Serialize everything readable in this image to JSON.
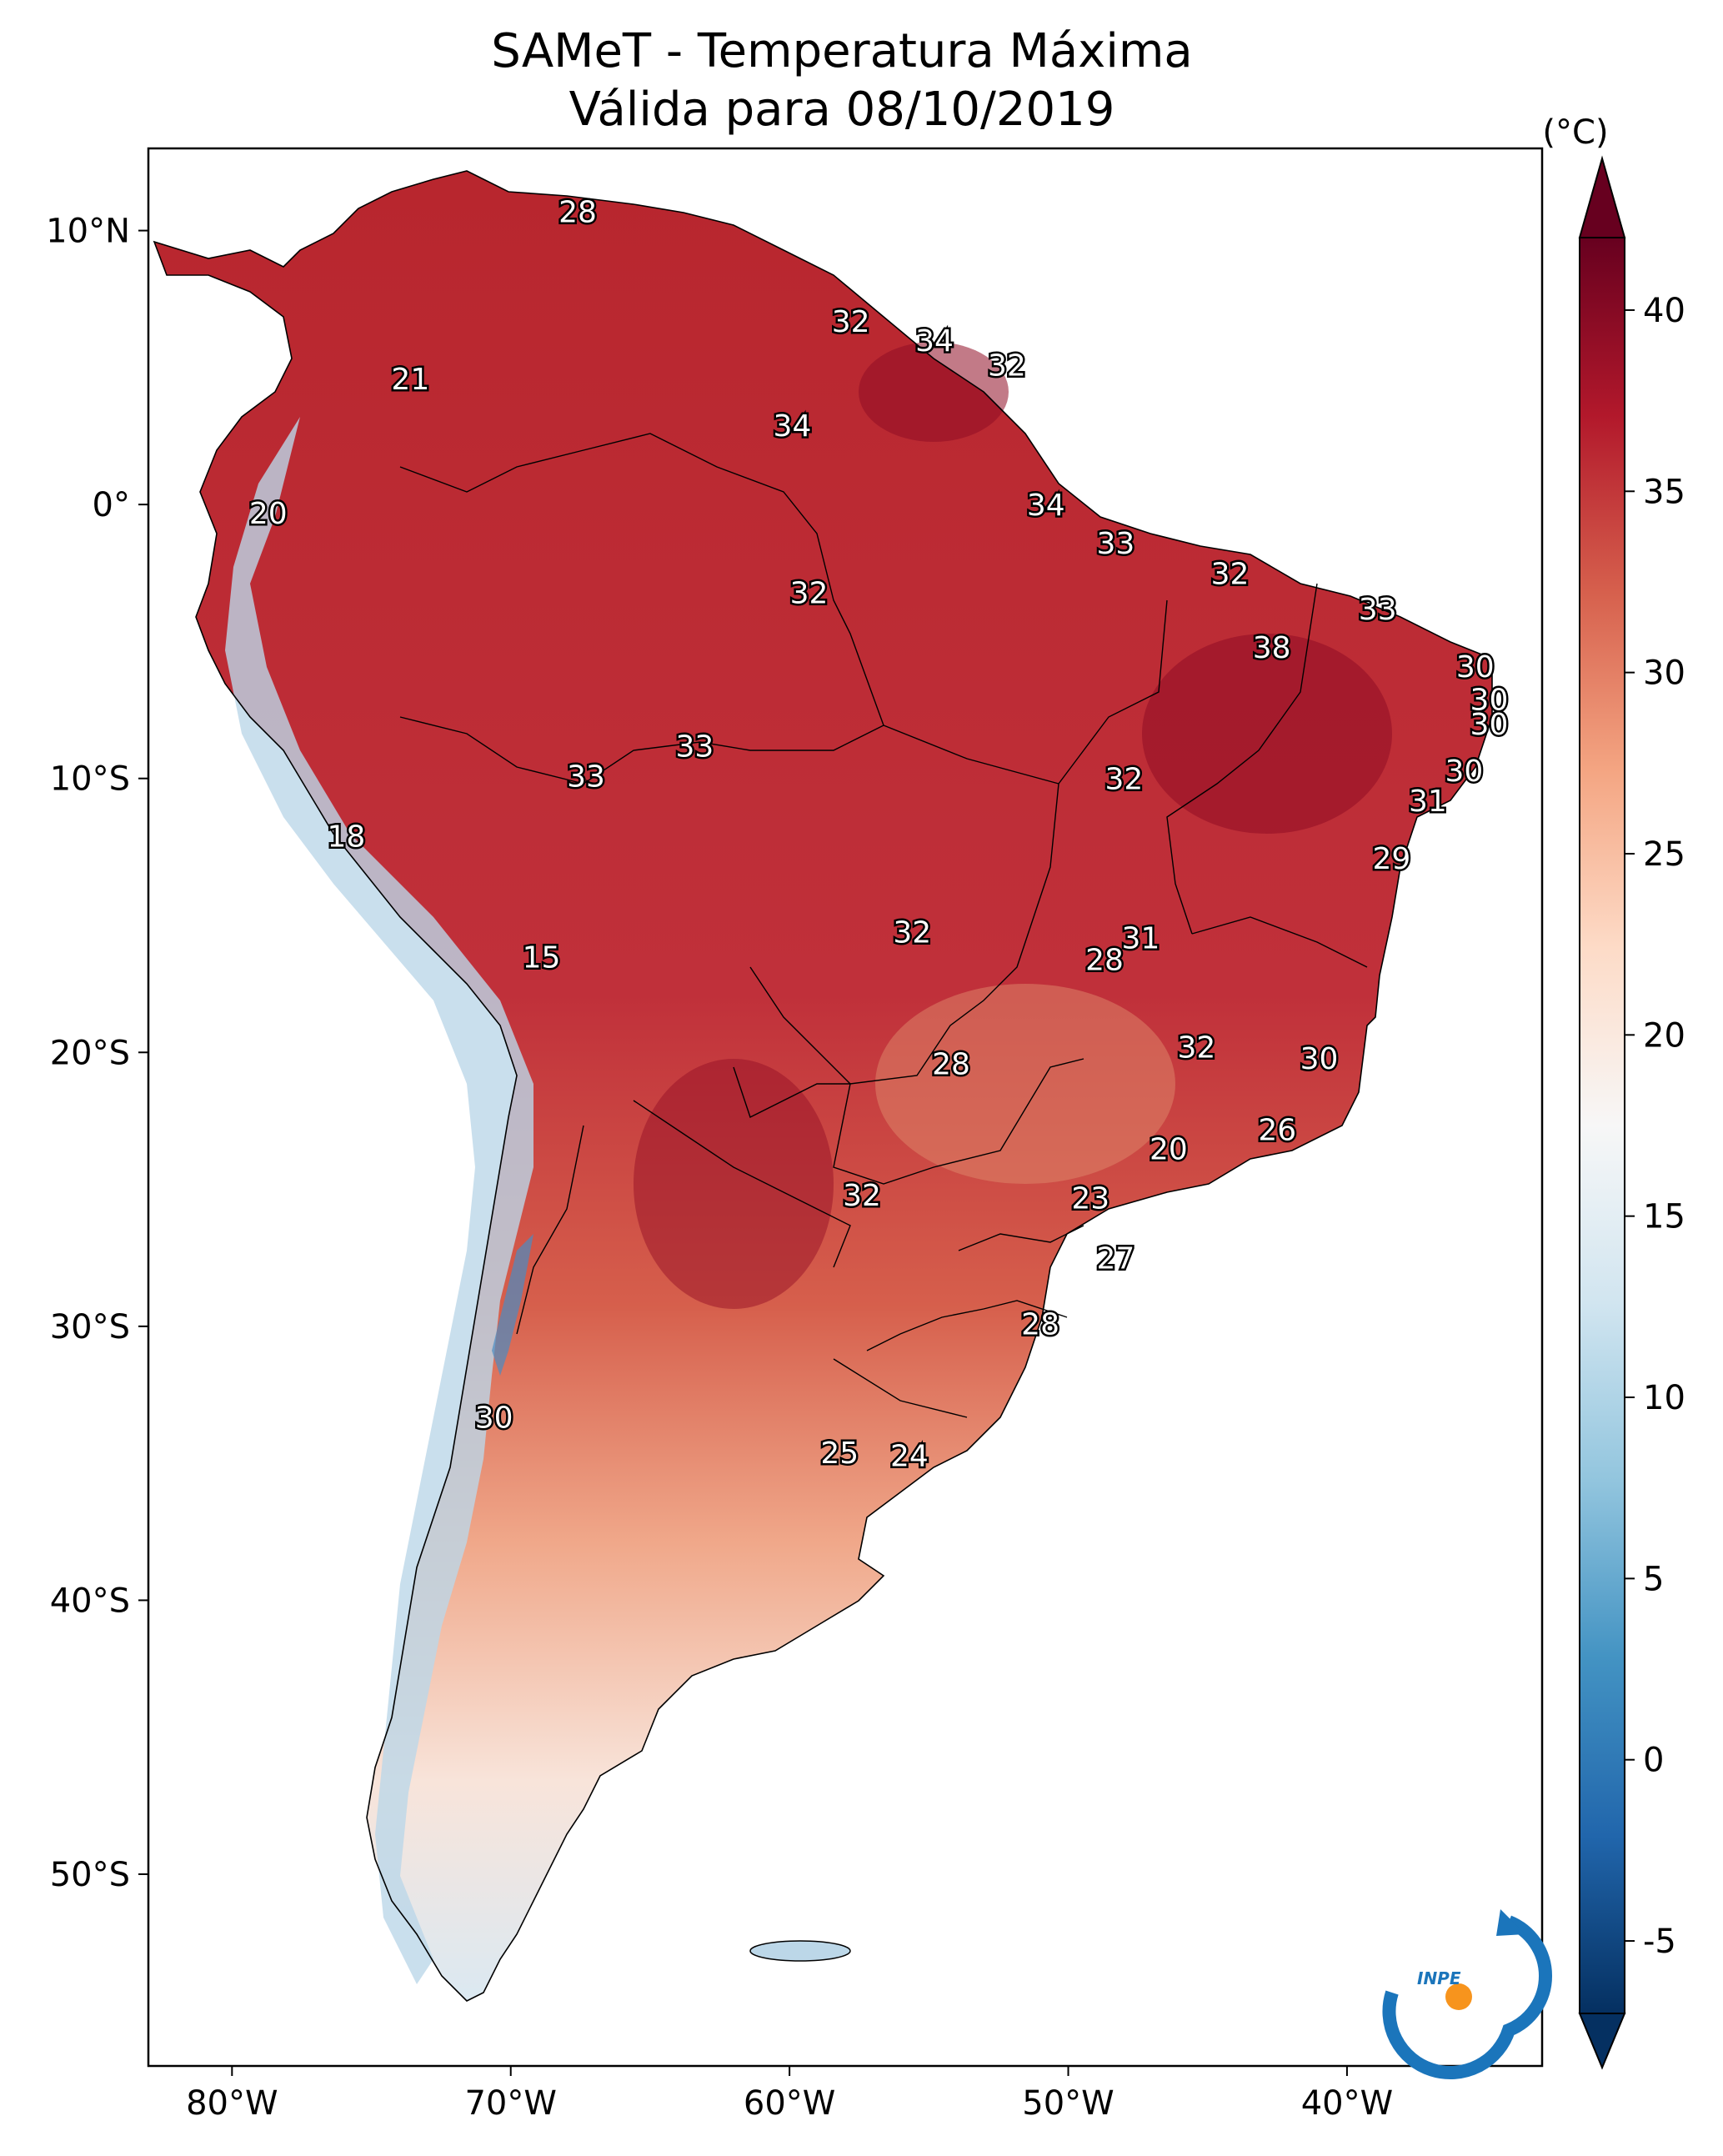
{
  "title": {
    "line1": "SAMeT - Temperatura Máxima",
    "line2": "Válida para 08/10/2019"
  },
  "map": {
    "lon_range": [
      -83,
      -33
    ],
    "lat_range": [
      -57,
      13
    ],
    "lon_ticks": [
      {
        "value": -80,
        "label": "80°W"
      },
      {
        "value": -70,
        "label": "70°W"
      },
      {
        "value": -60,
        "label": "60°W"
      },
      {
        "value": -50,
        "label": "50°W"
      },
      {
        "value": -40,
        "label": "40°W"
      }
    ],
    "lat_ticks": [
      {
        "value": 10,
        "label": "10°N"
      },
      {
        "value": 0,
        "label": "0°"
      },
      {
        "value": -10,
        "label": "10°S"
      },
      {
        "value": -20,
        "label": "20°S"
      },
      {
        "value": -30,
        "label": "30°S"
      },
      {
        "value": -40,
        "label": "40°S"
      },
      {
        "value": -50,
        "label": "50°S"
      }
    ],
    "station_labels": [
      {
        "text": "28",
        "lon": -67.6,
        "lat": 10.7
      },
      {
        "text": "32",
        "lon": -57.8,
        "lat": 6.7
      },
      {
        "text": "34",
        "lon": -54.8,
        "lat": 6.0
      },
      {
        "text": "32",
        "lon": -52.2,
        "lat": 5.1
      },
      {
        "text": "21",
        "lon": -73.6,
        "lat": 4.6
      },
      {
        "text": "34",
        "lon": -59.9,
        "lat": 2.9
      },
      {
        "text": "34",
        "lon": -50.8,
        "lat": -0.0
      },
      {
        "text": "20",
        "lon": -78.7,
        "lat": -0.3
      },
      {
        "text": "33",
        "lon": -48.3,
        "lat": -1.4
      },
      {
        "text": "32",
        "lon": -59.3,
        "lat": -3.2
      },
      {
        "text": "32",
        "lon": -44.2,
        "lat": -2.5
      },
      {
        "text": "33",
        "lon": -38.9,
        "lat": -3.8
      },
      {
        "text": "38",
        "lon": -42.7,
        "lat": -5.2
      },
      {
        "text": "30",
        "lon": -35.4,
        "lat": -5.9
      },
      {
        "text": "30",
        "lon": -34.9,
        "lat": -7.1
      },
      {
        "text": "30",
        "lon": -34.9,
        "lat": -8.0
      },
      {
        "text": "33",
        "lon": -63.4,
        "lat": -8.8
      },
      {
        "text": "33",
        "lon": -67.3,
        "lat": -9.9
      },
      {
        "text": "32",
        "lon": -48.0,
        "lat": -10.0
      },
      {
        "text": "30",
        "lon": -35.8,
        "lat": -9.7
      },
      {
        "text": "31",
        "lon": -37.1,
        "lat": -10.8
      },
      {
        "text": "18",
        "lon": -75.9,
        "lat": -12.1
      },
      {
        "text": "29",
        "lon": -38.4,
        "lat": -12.9
      },
      {
        "text": "15",
        "lon": -68.9,
        "lat": -16.5
      },
      {
        "text": "31",
        "lon": -47.4,
        "lat": -15.8
      },
      {
        "text": "32",
        "lon": -55.6,
        "lat": -15.6
      },
      {
        "text": "28",
        "lon": -48.7,
        "lat": -16.6
      },
      {
        "text": "32",
        "lon": -45.4,
        "lat": -19.8
      },
      {
        "text": "28",
        "lon": -54.2,
        "lat": -20.4
      },
      {
        "text": "30",
        "lon": -41.0,
        "lat": -20.2
      },
      {
        "text": "26",
        "lon": -42.5,
        "lat": -22.8
      },
      {
        "text": "20",
        "lon": -46.4,
        "lat": -23.5
      },
      {
        "text": "32",
        "lon": -57.4,
        "lat": -25.2
      },
      {
        "text": "23",
        "lon": -49.2,
        "lat": -25.3
      },
      {
        "text": "27",
        "lon": -48.3,
        "lat": -27.5
      },
      {
        "text": "28",
        "lon": -51.0,
        "lat": -29.9
      },
      {
        "text": "30",
        "lon": -70.6,
        "lat": -33.3
      },
      {
        "text": "25",
        "lon": -58.2,
        "lat": -34.6
      },
      {
        "text": "24",
        "lon": -55.7,
        "lat": -34.7
      }
    ]
  },
  "colorbar": {
    "unit": "(°C)",
    "range": [
      -7,
      42
    ],
    "ticks": [
      {
        "value": 40,
        "label": "40"
      },
      {
        "value": 35,
        "label": "35"
      },
      {
        "value": 30,
        "label": "30"
      },
      {
        "value": 25,
        "label": "25"
      },
      {
        "value": 20,
        "label": "20"
      },
      {
        "value": 15,
        "label": "15"
      },
      {
        "value": 10,
        "label": "10"
      },
      {
        "value": 5,
        "label": "5"
      },
      {
        "value": 0,
        "label": "0"
      },
      {
        "value": -5,
        "label": "-5"
      }
    ],
    "colormap": [
      "#053061",
      "#2166ac",
      "#4393c3",
      "#92c5de",
      "#d1e5f0",
      "#f7f7f7",
      "#fddbc7",
      "#f4a582",
      "#d6604d",
      "#b2182b",
      "#67001f"
    ]
  },
  "logo": {
    "text": "INPE"
  }
}
